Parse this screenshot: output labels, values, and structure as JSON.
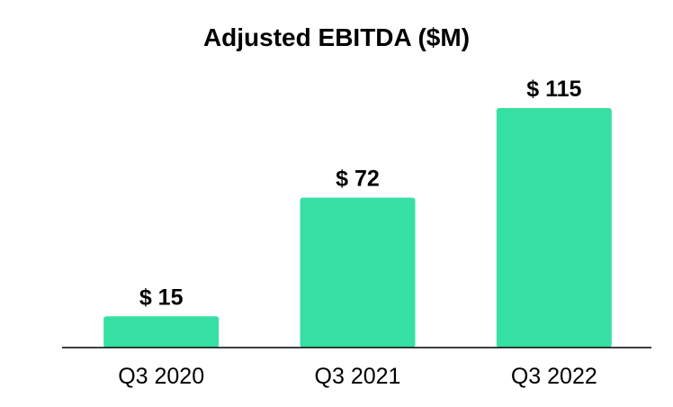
{
  "chart_data": {
    "type": "bar",
    "title": "Adjusted EBITDA ($M)",
    "xlabel": "",
    "ylabel": "",
    "categories": [
      "Q3 2020",
      "Q3 2021",
      "Q3 2022"
    ],
    "values": [
      15,
      72,
      115
    ],
    "data_labels": [
      "$ 15",
      "$ 72",
      "$ 115"
    ],
    "ylim": [
      0,
      115
    ],
    "grid": false,
    "legend": "none",
    "bar_color": "#36e0a2",
    "axis_color": "#000000"
  }
}
